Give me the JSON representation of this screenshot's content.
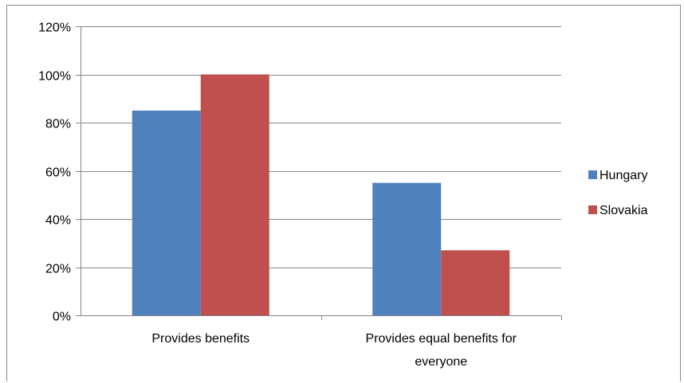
{
  "chart_data": {
    "type": "bar",
    "categories": [
      [
        "Provides benefits"
      ],
      [
        "Provides equal benefits for",
        "everyone"
      ]
    ],
    "series": [
      {
        "name": "Hungary",
        "values": [
          85,
          55
        ],
        "color": "#4f81bd"
      },
      {
        "name": "Slovakia",
        "values": [
          100,
          27
        ],
        "color": "#c0504d"
      }
    ],
    "ylim": [
      0,
      120
    ],
    "yticks": [
      "0%",
      "20%",
      "40%",
      "60%",
      "80%",
      "100%",
      "120%"
    ],
    "ytick_values": [
      0,
      20,
      40,
      60,
      80,
      100,
      120
    ],
    "grid": true,
    "legend_position": "right",
    "gridline_color": "#868686",
    "axis_color": "#868686"
  }
}
